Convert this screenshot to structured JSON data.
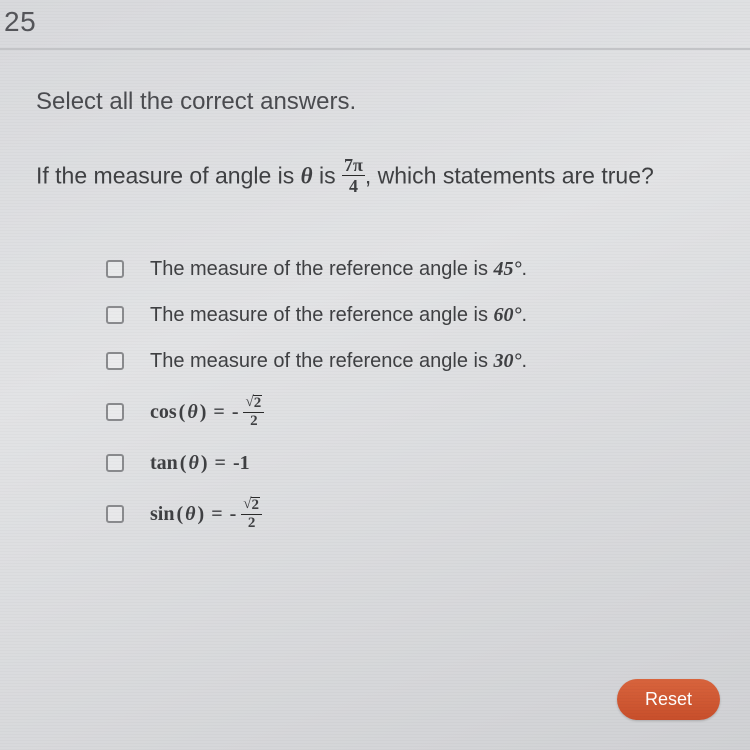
{
  "question_number": "25",
  "instruction": "Select all the correct answers.",
  "prompt": {
    "before_theta": "If the measure of angle is ",
    "theta": "θ",
    "mid": " is ",
    "frac_num": "7π",
    "frac_den": "4",
    "after": ", which statements are true?"
  },
  "options": [
    {
      "kind": "text",
      "before": "The measure of the reference angle is ",
      "value": "45°",
      "after": "."
    },
    {
      "kind": "text",
      "before": "The measure of the reference angle is ",
      "value": "60°",
      "after": "."
    },
    {
      "kind": "text",
      "before": "The measure of the reference angle is ",
      "value": "30°",
      "after": "."
    },
    {
      "kind": "math",
      "fn": "cos",
      "rhs_type": "negfrac_sqrt",
      "sqrt_of": "2",
      "den": "2"
    },
    {
      "kind": "math",
      "fn": "tan",
      "rhs_type": "plain",
      "rhs": "-1"
    },
    {
      "kind": "math",
      "fn": "sin",
      "rhs_type": "negfrac_sqrt",
      "sqrt_of": "2",
      "den": "2"
    }
  ],
  "reset_label": "Reset",
  "colors": {
    "background_top": "#d8d9dc",
    "background_bottom": "#d0d1d4",
    "text": "#3f4043",
    "divider": "#c3c4c7",
    "checkbox_border": "#8a8b8e",
    "button_bg": "#d45a34",
    "button_text": "#ffffff"
  }
}
